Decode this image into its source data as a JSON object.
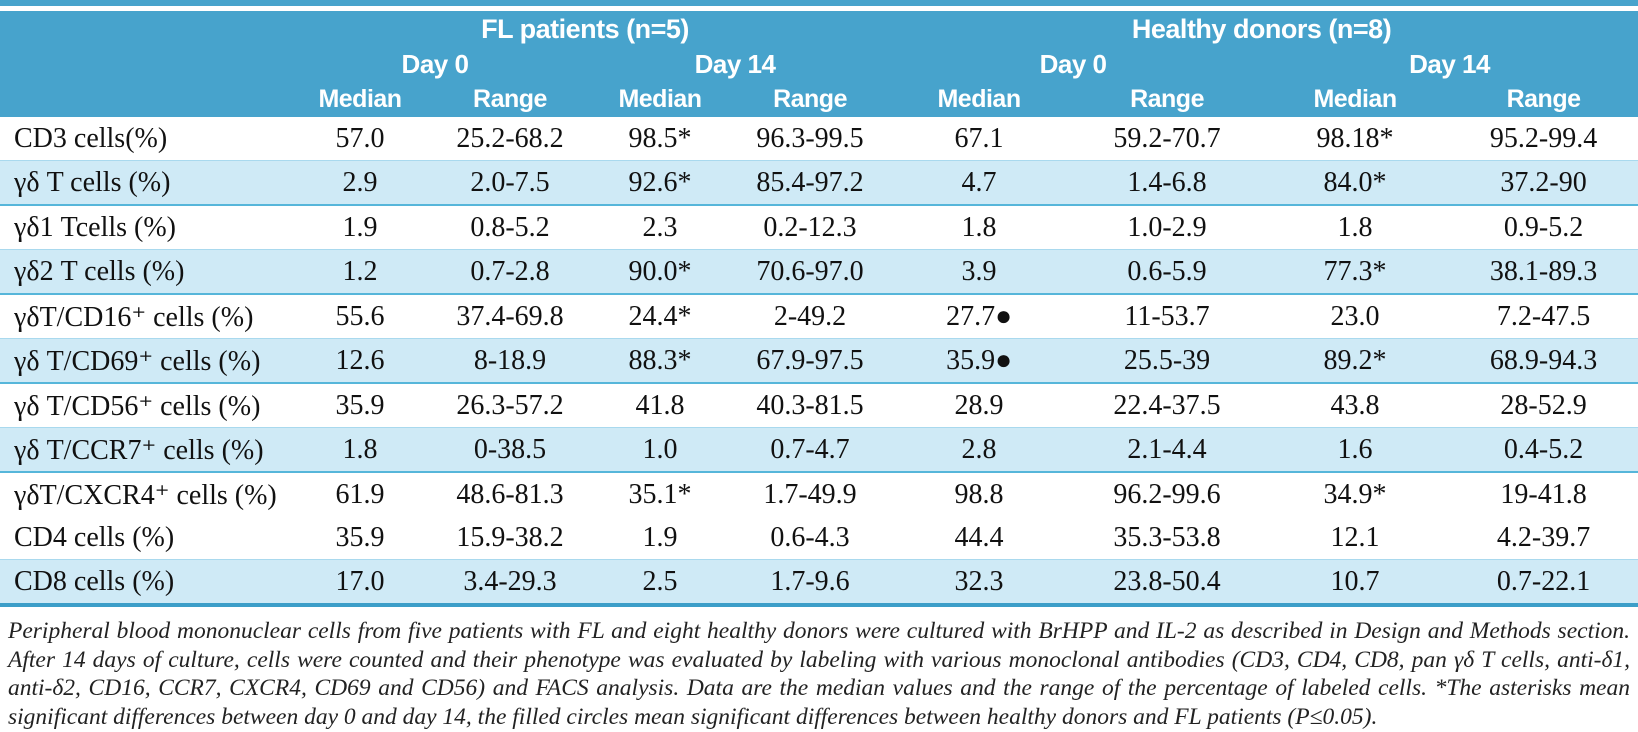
{
  "table": {
    "group_headers": [
      "FL patients (n=5)",
      "Healthy donors (n=8)"
    ],
    "day_headers": [
      "Day 0",
      "Day 14",
      "Day 0",
      "Day 14"
    ],
    "col_headers": [
      "Median",
      "Range",
      "Median",
      "Range",
      "Median",
      "Range",
      "Median",
      "Range"
    ],
    "rows": [
      {
        "label": "CD3 cells(%)",
        "shaded": false,
        "values": [
          "57.0",
          "25.2-68.2",
          "98.5*",
          "96.3-99.5",
          "67.1",
          "59.2-70.7",
          "98.18*",
          "95.2-99.4"
        ]
      },
      {
        "label": "γδ T cells (%)",
        "shaded": true,
        "values": [
          "2.9",
          "2.0-7.5",
          "92.6*",
          "85.4-97.2",
          "4.7",
          "1.4-6.8",
          "84.0*",
          "37.2-90"
        ]
      },
      {
        "label": "γδ1 Tcells (%)",
        "shaded": false,
        "values": [
          "1.9",
          "0.8-5.2",
          "2.3",
          "0.2-12.3",
          "1.8",
          "1.0-2.9",
          "1.8",
          "0.9-5.2"
        ]
      },
      {
        "label": "γδ2 T cells (%)",
        "shaded": true,
        "values": [
          "1.2",
          "0.7-2.8",
          "90.0*",
          "70.6-97.0",
          "3.9",
          "0.6-5.9",
          "77.3*",
          "38.1-89.3"
        ]
      },
      {
        "label": "γδT/CD16⁺ cells (%)",
        "shaded": false,
        "values": [
          "55.6",
          "37.4-69.8",
          "24.4*",
          "2-49.2",
          "27.7●",
          "11-53.7",
          "23.0",
          "7.2-47.5"
        ]
      },
      {
        "label": "γδ T/CD69⁺ cells (%)",
        "shaded": true,
        "values": [
          "12.6",
          "8-18.9",
          "88.3*",
          "67.9-97.5",
          "35.9●",
          "25.5-39",
          "89.2*",
          "68.9-94.3"
        ]
      },
      {
        "label": "γδ T/CD56⁺ cells (%)",
        "shaded": false,
        "values": [
          "35.9",
          "26.3-57.2",
          "41.8",
          "40.3-81.5",
          "28.9",
          "22.4-37.5",
          "43.8",
          "28-52.9"
        ]
      },
      {
        "label": "γδ T/CCR7⁺ cells (%)",
        "shaded": true,
        "values": [
          "1.8",
          "0-38.5",
          "1.0",
          "0.7-4.7",
          "2.8",
          "2.1-4.4",
          "1.6",
          "0.4-5.2"
        ]
      },
      {
        "label": "γδT/CXCR4⁺ cells (%)",
        "shaded": false,
        "values": [
          "61.9",
          "48.6-81.3",
          "35.1*",
          "1.7-49.9",
          "98.8",
          "96.2-99.6",
          "34.9*",
          "19-41.8"
        ]
      },
      {
        "label": "CD4 cells (%)",
        "shaded": false,
        "values": [
          "35.9",
          "15.9-38.2",
          "1.9",
          "0.6-4.3",
          "44.4",
          "35.3-53.8",
          "12.1",
          "4.2-39.7"
        ]
      },
      {
        "label": "CD8 cells (%)",
        "shaded": true,
        "values": [
          "17.0",
          "3.4-29.3",
          "2.5",
          "1.7-9.6",
          "32.3",
          "23.8-50.4",
          "10.7",
          "0.7-22.1"
        ]
      }
    ],
    "footnote": "Peripheral blood mononuclear cells from five patients with FL and eight healthy donors were cultured with BrHPP and IL-2 as described in Design and Methods section. After 14 days of culture, cells were counted and their phenotype was evaluated by labeling with various monoclonal antibodies (CD3, CD4, CD8, pan γδ T cells, anti-δ1, anti-δ2, CD16, CCR7, CXCR4, CD69 and CD56) and FACS analysis. Data are the median values and the range of the percentage of labeled cells. *The asterisks mean significant differences between day 0 and day 14, the filled circles mean significant differences between healthy donors and FL patients (P≤0.05)."
  }
}
